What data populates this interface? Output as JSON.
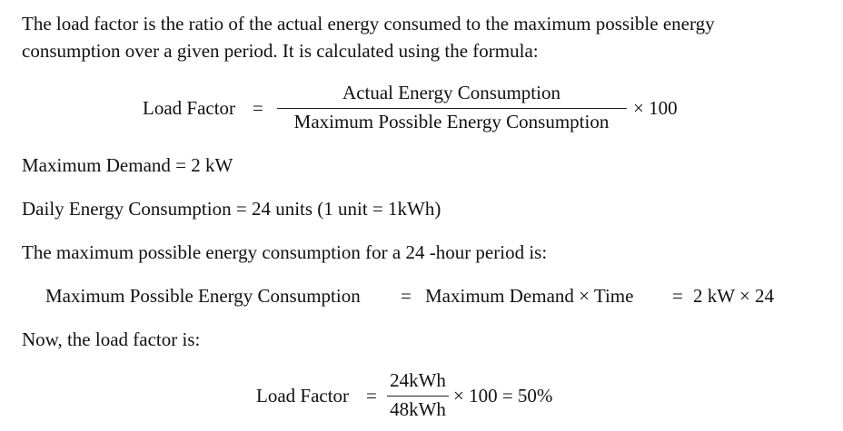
{
  "intro": {
    "lines": [
      "The load factor is the ratio of the actual energy consumed to the maximum possible energy",
      "consumption over a given period. It is calculated using the formula:"
    ]
  },
  "formula_1": {
    "lhs": "Load Factor",
    "equals": "=",
    "numerator": "Actual Energy Consumption",
    "denominator": "Maximum Possible Energy Consumption",
    "tail": "× 100"
  },
  "given": [
    "Maximum Demand = 2 kW",
    "Daily Energy Consumption = 24 units (1 unit = 1kWh)"
  ],
  "step_text": "The maximum possible energy consumption for a 24 -hour period is:",
  "formula_2": {
    "lhs": "Maximum Possible Energy Consumption",
    "equals_1": "=",
    "middle": "Maximum Demand × Time",
    "equals_2": "=",
    "result": "2 kW × 24"
  },
  "now_text": "Now, the load factor is:",
  "formula_3": {
    "lhs": "Load Factor",
    "equals": "=",
    "numerator": "24kWh",
    "denominator": "48kWh",
    "tail": "× 100 = 50%"
  }
}
